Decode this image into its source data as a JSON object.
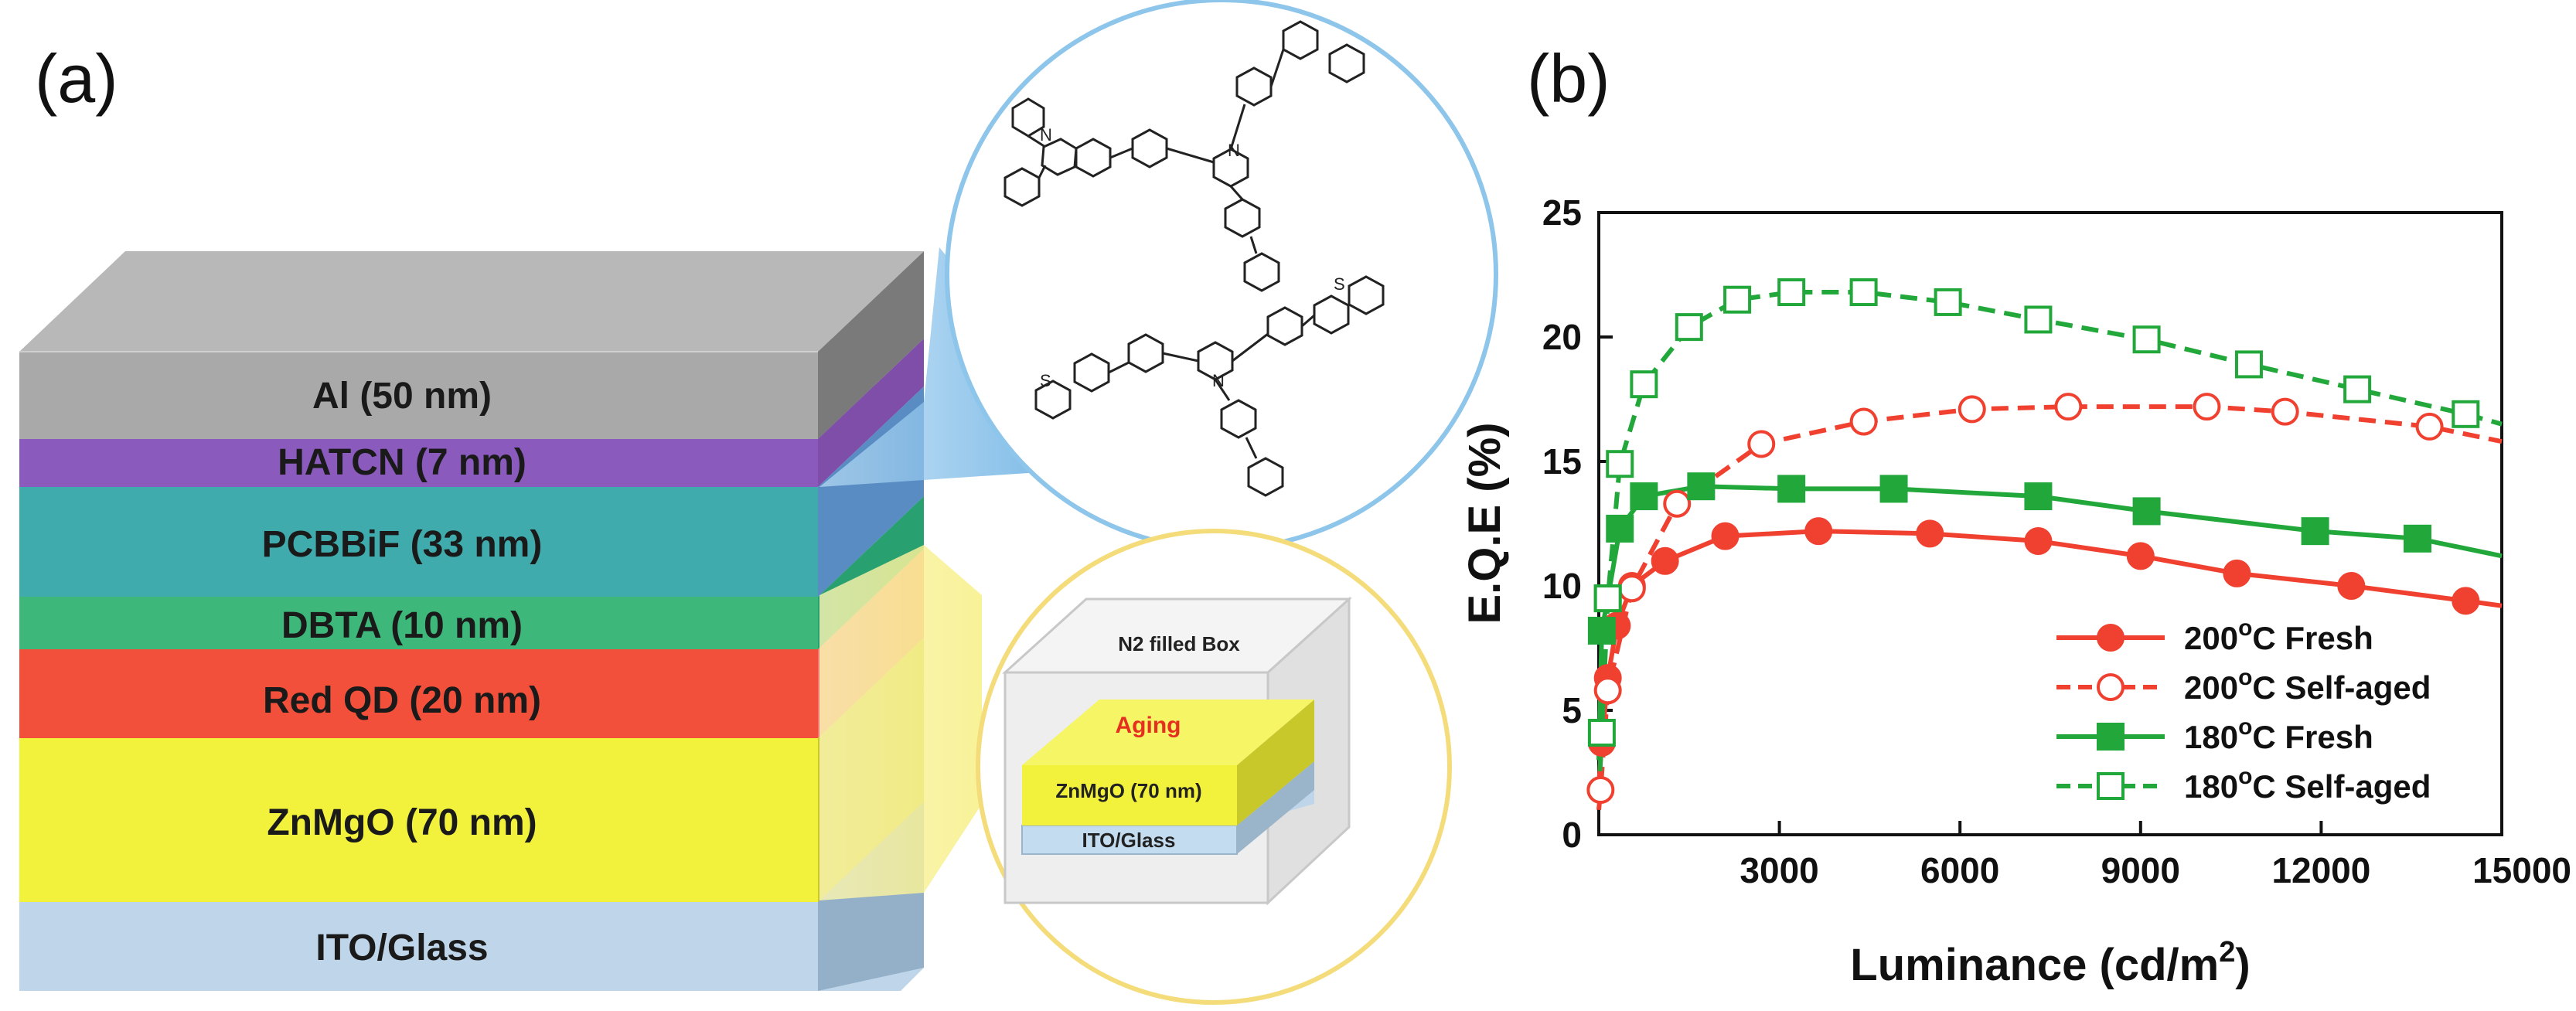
{
  "panel_a": {
    "label": "(a)",
    "layers": [
      {
        "name": "Al (50 nm)",
        "color": "#a9a9a9"
      },
      {
        "name": "HATCN (7 nm)",
        "color": "#9b5fc0"
      },
      {
        "name": "PCBBiF (33 nm)",
        "color": "#6e9fd8"
      },
      {
        "name": "DBTA (10 nm)",
        "color": "#20c090"
      },
      {
        "name": "Red QD (20 nm)",
        "color": "#f2503a"
      },
      {
        "name": "ZnMgO (70 nm)",
        "color": "#f2f23c"
      },
      {
        "name": "ITO/Glass",
        "color": "#bfd6ea"
      }
    ],
    "inset_box": {
      "title": "N2 filled Box",
      "aging_label": "Aging",
      "znmgo_label": "ZnMgO (70 nm)",
      "ito_label": "ITO/Glass"
    },
    "molecule_circle_color": "#8ec5ea",
    "box_circle_color": "#f5dc7a"
  },
  "panel_b": {
    "label": "(b)"
  },
  "chart_data": {
    "type": "line",
    "title": "",
    "xlabel": "Luminance (cd/m2)",
    "ylabel": "E.Q.E (%)",
    "xlim": [
      0,
      15000
    ],
    "ylim": [
      0,
      25
    ],
    "xticks": [
      3000,
      6000,
      9000,
      12000,
      15000
    ],
    "yticks": [
      0,
      5,
      10,
      15,
      20,
      25
    ],
    "legend_position": "bottom-right",
    "series": [
      {
        "name": "200°C Fresh",
        "legend_temp": "200",
        "legend_rest": "C Fresh",
        "color": "#f04030",
        "marker": "circle-filled",
        "line": "solid",
        "x": [
          50,
          150,
          300,
          550,
          1100,
          2100,
          3650,
          5500,
          7300,
          9000,
          10600,
          12500,
          14400
        ],
        "y": [
          3.7,
          6.3,
          8.4,
          10.0,
          11.0,
          12.0,
          12.2,
          12.1,
          11.8,
          11.2,
          10.5,
          10.0,
          9.4
        ],
        "curve_x": [
          0,
          50,
          150,
          300,
          550,
          1100,
          2100,
          3650,
          5500,
          7300,
          9000,
          10600,
          12500,
          14400,
          15000
        ],
        "curve_y": [
          2.0,
          3.7,
          6.3,
          8.4,
          10.0,
          11.0,
          12.0,
          12.2,
          12.1,
          11.8,
          11.2,
          10.5,
          10.0,
          9.4,
          9.2
        ]
      },
      {
        "name": "200°C Self-aged",
        "legend_temp": "200",
        "legend_rest": "C Self-aged",
        "color": "#f04030",
        "marker": "circle-open",
        "line": "dashed",
        "x": [
          30,
          150,
          550,
          1300,
          2700,
          4400,
          6200,
          7800,
          10100,
          11400,
          13800
        ],
        "y": [
          1.8,
          5.8,
          9.9,
          13.3,
          15.7,
          16.6,
          17.1,
          17.2,
          17.2,
          17.0,
          16.4
        ],
        "curve_x": [
          0,
          30,
          150,
          550,
          1300,
          2700,
          4400,
          6200,
          7800,
          10100,
          11400,
          13800,
          15000
        ],
        "curve_y": [
          1.0,
          1.8,
          5.8,
          9.9,
          13.3,
          15.7,
          16.6,
          17.1,
          17.2,
          17.2,
          17.0,
          16.4,
          15.8
        ]
      },
      {
        "name": "180°C Fresh",
        "legend_temp": "180",
        "legend_rest": "C Fresh",
        "color": "#22a83a",
        "marker": "square-filled",
        "line": "solid",
        "x": [
          50,
          150,
          350,
          750,
          1700,
          3200,
          4900,
          7300,
          9100,
          11900,
          13600
        ],
        "y": [
          8.2,
          9.5,
          12.3,
          13.6,
          14.0,
          13.9,
          13.9,
          13.6,
          13.0,
          12.2,
          11.9
        ],
        "curve_x": [
          0,
          50,
          150,
          350,
          750,
          1700,
          3200,
          4900,
          7300,
          9100,
          11900,
          13600,
          15000
        ],
        "curve_y": [
          3.0,
          8.2,
          9.5,
          12.3,
          13.6,
          14.0,
          13.9,
          13.9,
          13.6,
          13.0,
          12.2,
          11.9,
          11.2
        ]
      },
      {
        "name": "180°C Self-aged",
        "legend_temp": "180",
        "legend_rest": "C Self-aged",
        "color": "#22a83a",
        "marker": "square-open",
        "line": "dashed",
        "x": [
          50,
          150,
          350,
          750,
          1500,
          2300,
          3200,
          4400,
          5800,
          7300,
          9100,
          10800,
          12600,
          14400
        ],
        "y": [
          4.1,
          9.5,
          14.9,
          18.1,
          20.4,
          21.5,
          21.8,
          21.8,
          21.4,
          20.7,
          19.9,
          18.9,
          17.9,
          16.9
        ],
        "curve_x": [
          0,
          50,
          150,
          350,
          750,
          1500,
          2300,
          3200,
          4400,
          5800,
          7300,
          9100,
          10800,
          12600,
          14400,
          15000
        ],
        "curve_y": [
          1.5,
          4.1,
          9.5,
          14.9,
          18.1,
          20.4,
          21.5,
          21.8,
          21.8,
          21.4,
          20.7,
          19.9,
          18.9,
          17.9,
          16.9,
          16.5
        ]
      }
    ]
  }
}
